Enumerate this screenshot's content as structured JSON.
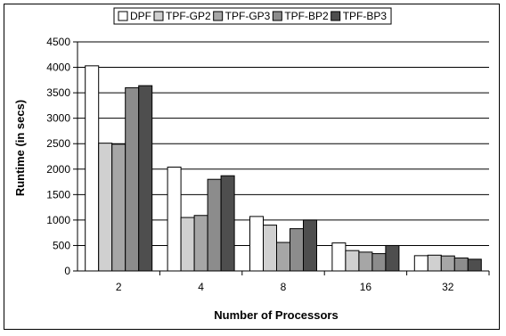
{
  "chart_data": {
    "type": "bar",
    "title": "",
    "xlabel": "Number of Processors",
    "ylabel": "Runtime (in secs)",
    "ylim": [
      0,
      4500
    ],
    "ytick_step": 500,
    "grid": true,
    "legend_position": "top",
    "categories": [
      "2",
      "4",
      "8",
      "16",
      "32"
    ],
    "series": [
      {
        "name": "DPF",
        "color": "#ffffff",
        "values": [
          4030,
          2040,
          1070,
          550,
          300
        ]
      },
      {
        "name": "TPF-GP2",
        "color": "#d0d0d0",
        "values": [
          2510,
          1050,
          900,
          400,
          310
        ]
      },
      {
        "name": "TPF-GP3",
        "color": "#a6a6a6",
        "values": [
          2490,
          1090,
          560,
          370,
          295
        ]
      },
      {
        "name": "TPF-BP2",
        "color": "#8c8c8c",
        "values": [
          3600,
          1800,
          830,
          340,
          255
        ]
      },
      {
        "name": "TPF-BP3",
        "color": "#4e4e4e",
        "values": [
          3640,
          1870,
          1000,
          500,
          230
        ]
      }
    ]
  }
}
